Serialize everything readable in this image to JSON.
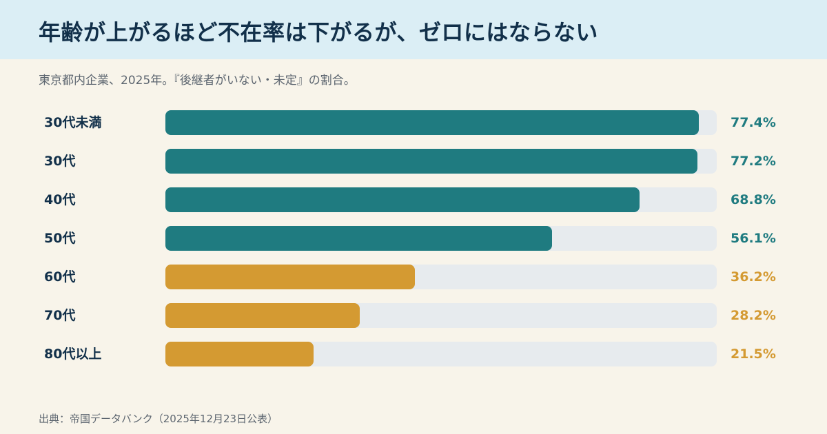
{
  "title": "年齢が上がるほど不在率は下がるが、ゼロにはならない",
  "subtitle": "東京都内企業、2025年。『後継者がいない・未定』の割合。",
  "source": "出典：帝国データバンク（2025年12月23日公表）",
  "colors": {
    "young": "#1f7b80",
    "old": "#d49a32",
    "track": "#e7ebee",
    "header_bg": "#dbeef5",
    "page_bg": "#f8f4ea"
  },
  "chart_data": {
    "type": "bar",
    "orientation": "horizontal",
    "categories": [
      "30代未満",
      "30代",
      "40代",
      "50代",
      "60代",
      "70代",
      "80代以上"
    ],
    "values": [
      77.4,
      77.2,
      68.8,
      56.1,
      36.2,
      28.2,
      21.5
    ],
    "value_labels": [
      "77.4%",
      "77.2%",
      "68.8%",
      "56.1%",
      "36.2%",
      "28.2%",
      "21.5%"
    ],
    "bar_colors": [
      "#1f7b80",
      "#1f7b80",
      "#1f7b80",
      "#1f7b80",
      "#d49a32",
      "#d49a32",
      "#d49a32"
    ],
    "title": "年齢が上がるほど不在率は下がるが、ゼロにはならない",
    "xlim": [
      0,
      80
    ],
    "grid": false,
    "legend": "none"
  }
}
